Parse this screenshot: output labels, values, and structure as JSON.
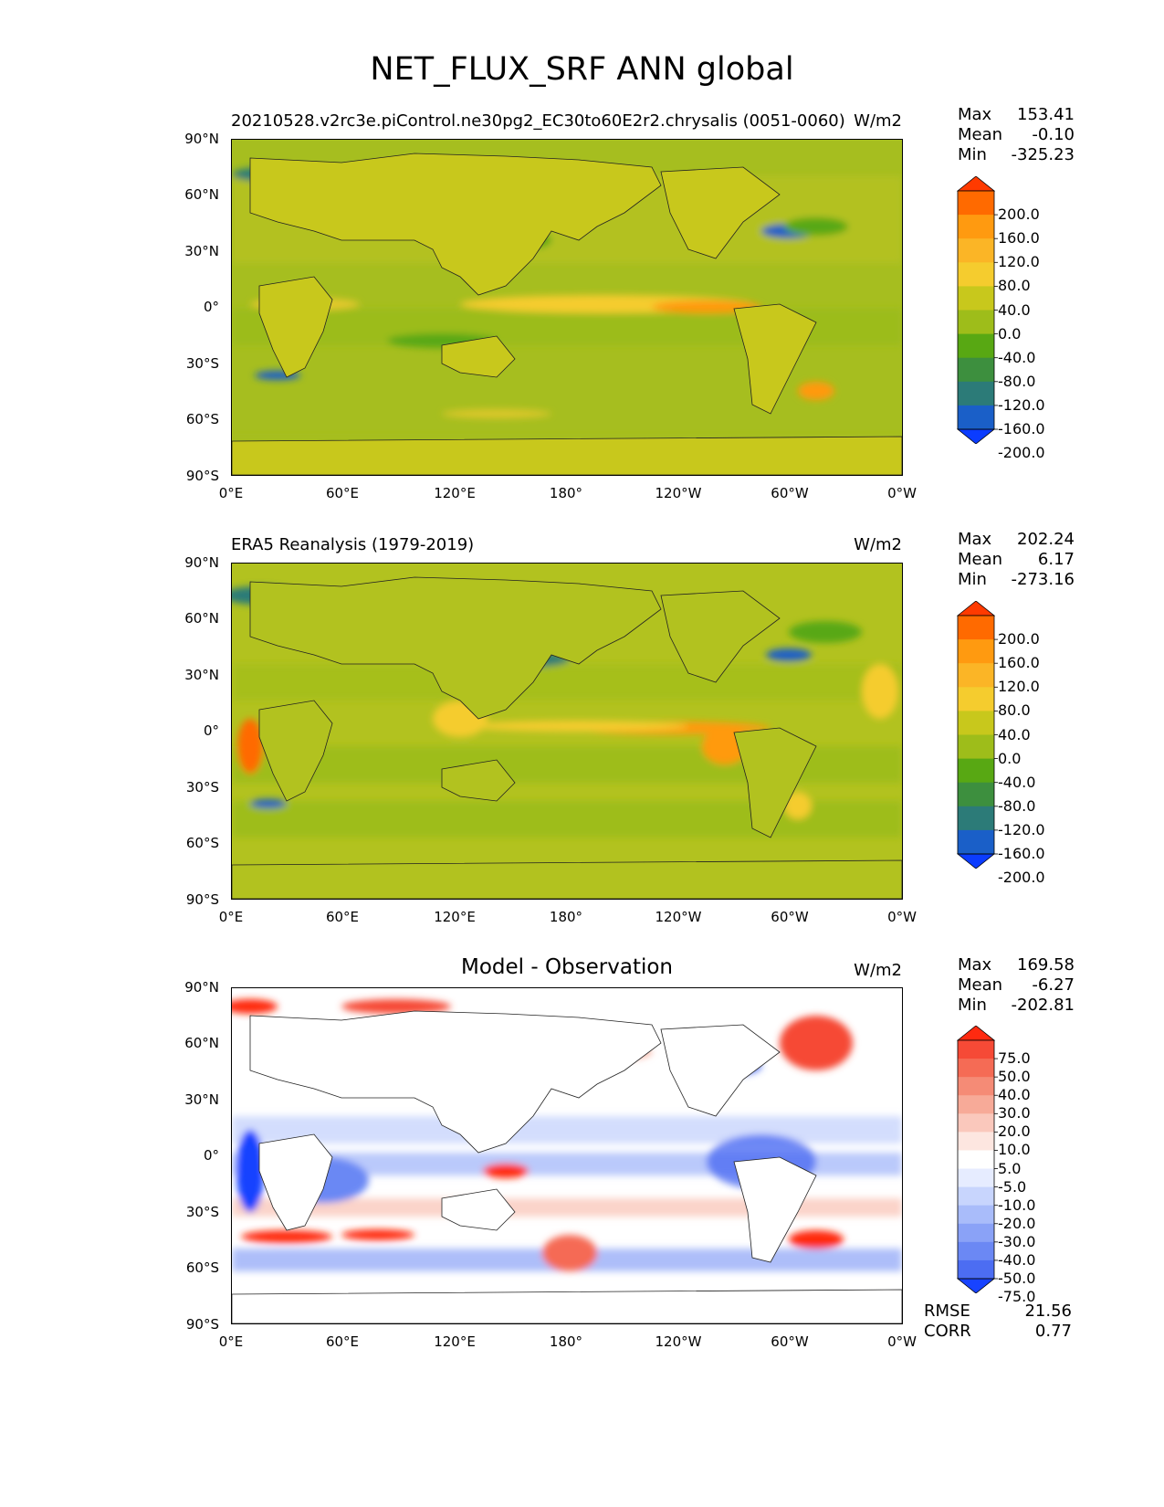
{
  "figure": {
    "title": "NET_FLUX_SRF ANN global"
  },
  "axes": {
    "y_ticks": [
      "90°N",
      "60°N",
      "30°N",
      "0°",
      "30°S",
      "60°S",
      "90°S"
    ],
    "x_ticks": [
      "0°E",
      "60°E",
      "120°E",
      "180°",
      "120°W",
      "60°W",
      "0°W"
    ]
  },
  "panels": [
    {
      "title": "20210528.v2rc3e.piControl.ne30pg2_EC30to60E2r2.chrysalis (0051-0060)",
      "units": "W/m2",
      "stats": {
        "max_label": "Max",
        "max": "153.41",
        "mean_label": "Mean",
        "mean": "-0.10",
        "min_label": "Min",
        "min": "-325.23"
      },
      "colorbar": {
        "levels": [
          "200.0",
          "160.0",
          "120.0",
          "80.0",
          "40.0",
          "0.0",
          "-40.0",
          "-80.0",
          "-120.0",
          "-160.0",
          "-200.0"
        ],
        "colors": [
          "#ff3a00",
          "#ff6a00",
          "#ff9a10",
          "#fbb526",
          "#f5cc2e",
          "#c8c81c",
          "#9ebd1a",
          "#58a813",
          "#3d8f3e",
          "#2c7b78",
          "#1a5fc8",
          "#0b3cff"
        ]
      }
    },
    {
      "title": "ERA5 Reanalysis (1979-2019)",
      "units": "W/m2",
      "stats": {
        "max_label": "Max",
        "max": "202.24",
        "mean_label": "Mean",
        "mean": "6.17",
        "min_label": "Min",
        "min": "-273.16"
      },
      "colorbar": {
        "levels": [
          "200.0",
          "160.0",
          "120.0",
          "80.0",
          "40.0",
          "0.0",
          "-40.0",
          "-80.0",
          "-120.0",
          "-160.0",
          "-200.0"
        ],
        "colors": [
          "#ff3a00",
          "#ff6a00",
          "#ff9a10",
          "#fbb526",
          "#f5cc2e",
          "#c8c81c",
          "#9ebd1a",
          "#58a813",
          "#3d8f3e",
          "#2c7b78",
          "#1a5fc8",
          "#0b3cff"
        ]
      }
    },
    {
      "title": "Model - Observation",
      "units": "W/m2",
      "stats": {
        "max_label": "Max",
        "max": "169.58",
        "mean_label": "Mean",
        "mean": "-6.27",
        "min_label": "Min",
        "min": "-202.81"
      },
      "colorbar": {
        "levels": [
          "75.0",
          "50.0",
          "40.0",
          "30.0",
          "20.0",
          "10.0",
          "5.0",
          "-5.0",
          "-10.0",
          "-20.0",
          "-30.0",
          "-40.0",
          "-50.0",
          "-75.0"
        ],
        "colors": [
          "#ff2a10",
          "#f64a36",
          "#f56b55",
          "#f58b76",
          "#f7aa98",
          "#fac8bc",
          "#fde6e0",
          "#ffffff",
          "#e6ecff",
          "#c8d5fd",
          "#a9bcfa",
          "#8aa2f7",
          "#6b88f4",
          "#4c6df2",
          "#1843ff"
        ]
      },
      "metrics": {
        "rmse_label": "RMSE",
        "rmse": "21.56",
        "corr_label": "CORR",
        "corr": "0.77"
      }
    }
  ]
}
